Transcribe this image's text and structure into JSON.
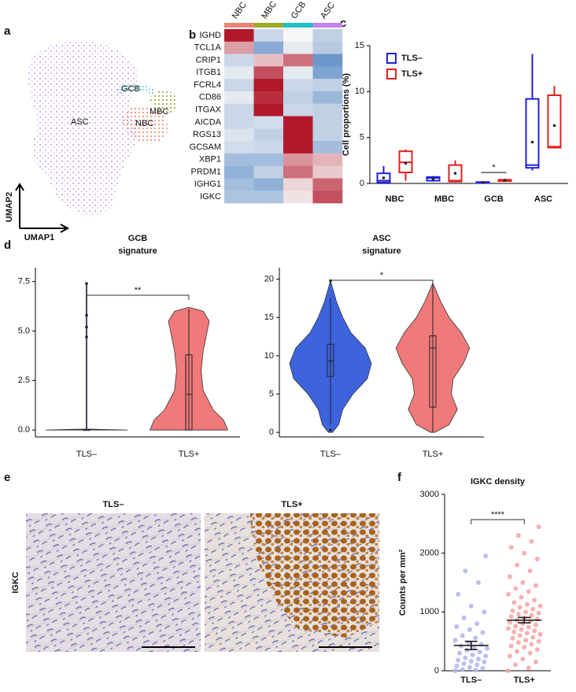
{
  "panel_labels": [
    "a",
    "b",
    "c",
    "d",
    "e",
    "f"
  ],
  "umap": {
    "cluster_labels": [
      "GCB",
      "MBC",
      "NBC",
      "ASC"
    ],
    "x_label": "UMAP1",
    "y_label": "UMAP2"
  },
  "ihc": {
    "stain": "IGKC",
    "titles": [
      "TLS–",
      "TLS+"
    ]
  },
  "chart_data": [
    {
      "type": "heatmap",
      "columns": [
        "NBC",
        "MBC",
        "GCB",
        "ASC"
      ],
      "column_colors": [
        "#f08474",
        "#9bab2a",
        "#22c0c4",
        "#c483ee"
      ],
      "rows": [
        "IGHD",
        "TCL1A",
        "CRIP1",
        "ITGB1",
        "FCRL4",
        "CD86",
        "ITGAX",
        "AICDA",
        "RGS13",
        "GCSAM",
        "XBP1",
        "PRDM1",
        "IGHG1",
        "IGKC"
      ],
      "values": [
        [
          2,
          -0.5,
          0,
          -0.6
        ],
        [
          0.8,
          -1.2,
          -0.2,
          -0.7
        ],
        [
          -0.5,
          0.5,
          1.2,
          -1.5
        ],
        [
          -0.2,
          1.5,
          -0.2,
          -1.3
        ],
        [
          -0.5,
          2,
          -0.5,
          -0.6
        ],
        [
          -0.2,
          1.8,
          -0.6,
          -1
        ],
        [
          -0.5,
          2,
          -0.5,
          -0.6
        ],
        [
          -0.5,
          -0.4,
          2,
          -0.6
        ],
        [
          -0.3,
          -0.6,
          2,
          -0.6
        ],
        [
          -0.4,
          -0.5,
          2,
          -0.9
        ],
        [
          -0.9,
          -0.9,
          0.9,
          0.6
        ],
        [
          -1.1,
          -0.6,
          1.2,
          0.4
        ],
        [
          -0.9,
          -1.1,
          0.3,
          1.3
        ],
        [
          -0.8,
          -0.8,
          0.2,
          1.5
        ]
      ],
      "zlim": [
        -2,
        2
      ],
      "colors": [
        "#3f77bc",
        "#f7f7f7",
        "#b2182b"
      ]
    },
    {
      "type": "box",
      "categories": [
        "NBC",
        "MBC",
        "GCB",
        "ASC"
      ],
      "ylabel": "Cell proportions (%)",
      "ylim": [
        0,
        15
      ],
      "yticks": [
        0,
        5,
        10,
        15
      ],
      "legend": "top-left",
      "significance": [
        null,
        null,
        "*",
        null
      ],
      "series": [
        {
          "name": "TLS–",
          "color": "#2020dd",
          "min": [
            0,
            0.2,
            0,
            1.4
          ],
          "q1": [
            0.1,
            0.3,
            0.05,
            1.7
          ],
          "median": [
            0.3,
            0.6,
            0.1,
            2
          ],
          "q3": [
            1.1,
            0.7,
            0.15,
            9.2
          ],
          "max": [
            1.9,
            0.8,
            0.2,
            14.1
          ],
          "mean": [
            0.6,
            0.5,
            0.1,
            4.5
          ]
        },
        {
          "name": "TLS+",
          "color": "#e02020",
          "min": [
            0.3,
            0.1,
            0.2,
            3.8
          ],
          "q1": [
            1.2,
            0.2,
            0.25,
            3.9
          ],
          "median": [
            2.3,
            0.3,
            0.35,
            4
          ],
          "q3": [
            3.5,
            2,
            0.4,
            9.6
          ],
          "max": [
            3.7,
            2.5,
            0.5,
            10.6
          ],
          "mean": [
            2.2,
            1.1,
            0.35,
            6.3
          ]
        }
      ]
    },
    {
      "type": "violin",
      "title": [
        "GCB",
        "signature"
      ],
      "categories": [
        "TLS–",
        "TLS+"
      ],
      "ylim": [
        -0.35,
        8.2
      ],
      "yticks": [
        {
          "value": 0,
          "label": "0.0"
        },
        {
          "value": 2.5,
          "label": "2.5"
        },
        {
          "value": 5,
          "label": "5.0"
        },
        {
          "value": 7.5,
          "label": "7.5"
        }
      ],
      "significance": "**",
      "groups": [
        {
          "color": "#3d63dd",
          "density_y": [
            0,
            0.05,
            7.4
          ],
          "density_width": [
            1,
            0.01,
            0.01
          ],
          "min": 0,
          "q1": 0,
          "median": 0,
          "q3": 0,
          "max": 0,
          "outliers": [
            4.7,
            5.2,
            5.8,
            7.4
          ]
        },
        {
          "color": "#f07a7a",
          "density_y": [
            0,
            0.5,
            1,
            2,
            3,
            4,
            5,
            5.5,
            6,
            6.2
          ],
          "density_width": [
            0.95,
            0.85,
            0.6,
            0.35,
            0.3,
            0.35,
            0.45,
            0.5,
            0.35,
            0
          ],
          "min": 0,
          "q1": 0,
          "median": 1.8,
          "q3": 3.8,
          "max": 6.1,
          "outliers": []
        }
      ]
    },
    {
      "type": "violin",
      "title": [
        "ASC",
        "signature"
      ],
      "categories": [
        "TLS–",
        "TLS+"
      ],
      "ylim": [
        -0.6,
        21.5
      ],
      "yticks": [
        0,
        5,
        10,
        15,
        20
      ],
      "significance": "*",
      "groups": [
        {
          "color": "#3d63dd",
          "density_y": [
            0,
            1,
            3,
            5,
            7,
            9,
            11,
            13,
            15,
            17,
            19.8
          ],
          "density_width": [
            0.05,
            0.2,
            0.3,
            0.55,
            0.9,
            1,
            0.85,
            0.5,
            0.3,
            0.15,
            0
          ],
          "min": 1,
          "q1": 7.3,
          "median": 9.3,
          "q3": 11.5,
          "max": 17.5,
          "outliers": [
            0.3,
            19.8
          ]
        },
        {
          "color": "#f07a7a",
          "density_y": [
            0,
            1,
            3,
            5,
            7,
            9,
            11,
            13,
            15,
            17,
            19.5
          ],
          "density_width": [
            0.05,
            0.4,
            0.6,
            0.45,
            0.5,
            0.75,
            0.9,
            0.7,
            0.4,
            0.2,
            0
          ],
          "min": 0,
          "q1": 3.3,
          "median": 11,
          "q3": 12.6,
          "max": 19.5,
          "outliers": []
        }
      ]
    },
    {
      "type": "strip",
      "title": "IGKC density",
      "ylabel": "Counts per mm²",
      "categories": [
        "TLS–",
        "TLS+"
      ],
      "ylim": [
        0,
        3000
      ],
      "yticks": [
        0,
        1000,
        2000,
        3000
      ],
      "significance": "****",
      "groups": [
        {
          "color": "#b0b4ec",
          "mean": 430,
          "sem": 70,
          "values": [
            0,
            10,
            20,
            40,
            60,
            80,
            100,
            120,
            150,
            160,
            180,
            200,
            220,
            250,
            270,
            300,
            320,
            350,
            380,
            400,
            420,
            450,
            480,
            520,
            560,
            600,
            650,
            700,
            750,
            800,
            900,
            1000,
            1100,
            1300,
            1500,
            1700,
            1950
          ]
        },
        {
          "color": "#f5a3a3",
          "mean": 860,
          "sem": 45,
          "values": [
            0,
            50,
            100,
            150,
            200,
            250,
            300,
            330,
            360,
            400,
            420,
            450,
            480,
            500,
            520,
            550,
            570,
            600,
            620,
            640,
            660,
            680,
            700,
            720,
            740,
            760,
            780,
            800,
            820,
            840,
            860,
            880,
            900,
            920,
            940,
            960,
            980,
            1000,
            1020,
            1050,
            1080,
            1100,
            1130,
            1160,
            1200,
            1250,
            1300,
            1350,
            1400,
            1450,
            1500,
            1600,
            1700,
            1800,
            1900,
            2000,
            2100,
            2200,
            2300,
            2450
          ]
        }
      ]
    }
  ]
}
